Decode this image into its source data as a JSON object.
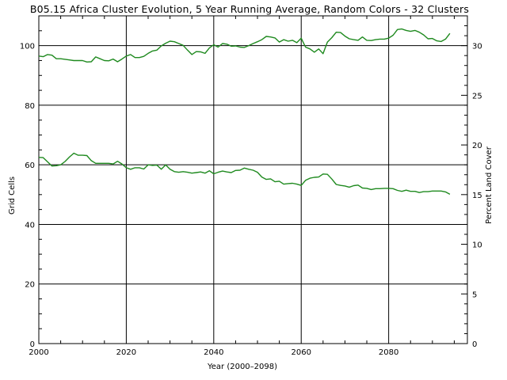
{
  "chart_data": {
    "type": "line",
    "title": "B05.15 Africa Cluster Evolution, 5 Year Running Average, Random Colors - 32 Clusters",
    "xlabel": "Year (2000–2098)",
    "ylabel": "Grid Cells",
    "y2label": "Percent Land Cover",
    "xlim": [
      2000,
      2098
    ],
    "ylim": [
      0,
      110
    ],
    "y2lim": [
      0,
      33
    ],
    "xticks": [
      2000,
      2020,
      2040,
      2060,
      2080
    ],
    "xtick_labels": [
      "2000",
      "2020",
      "2040",
      "2060",
      "2080"
    ],
    "yticks": [
      0,
      20,
      40,
      60,
      80,
      100
    ],
    "ytick_labels": [
      "0",
      "20",
      "40",
      "60",
      "80",
      "100"
    ],
    "y2ticks": [
      0,
      5,
      10,
      15,
      20,
      25,
      30
    ],
    "y2tick_labels": [
      "0",
      "5",
      "10",
      "15",
      "20",
      "25",
      "30"
    ],
    "grid": true,
    "series": [
      {
        "color": "#1f8a1f",
        "x": [
          2000,
          2001,
          2002,
          2003,
          2004,
          2005,
          2006,
          2007,
          2008,
          2009,
          2010,
          2011,
          2012,
          2013,
          2014,
          2015,
          2016,
          2017,
          2018,
          2019,
          2020,
          2021,
          2022,
          2023,
          2024,
          2025,
          2026,
          2027,
          2028,
          2029,
          2030,
          2031,
          2032,
          2033,
          2034,
          2035,
          2036,
          2037,
          2038,
          2039,
          2040,
          2041,
          2042,
          2043,
          2044,
          2045,
          2046,
          2047,
          2048,
          2049,
          2050,
          2051,
          2052,
          2053,
          2054,
          2055,
          2056,
          2057,
          2058,
          2059,
          2060,
          2061,
          2062,
          2063,
          2064,
          2065,
          2066,
          2067,
          2068,
          2069,
          2070,
          2071,
          2072,
          2073,
          2074,
          2075,
          2076,
          2077,
          2078,
          2079,
          2080,
          2081,
          2082,
          2083,
          2084,
          2085,
          2086,
          2087,
          2088,
          2089,
          2090,
          2091,
          2092,
          2093,
          2094
        ],
        "y": [
          96.5,
          96.3,
          97,
          96.8,
          95.6,
          95.6,
          95.4,
          95.2,
          95,
          95,
          95,
          94.5,
          94.6,
          96.2,
          95.6,
          95,
          94.9,
          95.5,
          94.6,
          95.5,
          96.5,
          97,
          96,
          96,
          96.4,
          97.4,
          98.2,
          98.5,
          99.9,
          100.8,
          101.5,
          101.3,
          100.7,
          100.1,
          98.5,
          97,
          98,
          97.9,
          97.4,
          99.2,
          100.3,
          99.5,
          100.7,
          100.5,
          99.8,
          99.9,
          99.5,
          99.4,
          100,
          100.7,
          101.3,
          102,
          103.1,
          102.9,
          102.6,
          101.2,
          102,
          101.5,
          101.8,
          101,
          102.5,
          99.5,
          98.9,
          97.8,
          98.9,
          97.3,
          101.2,
          102.7,
          104.5,
          104.4,
          103.2,
          102.3,
          102,
          101.8,
          102.9,
          101.8,
          101.7,
          102,
          102.2,
          102.2,
          102.5,
          103.5,
          105.4,
          105.6,
          105.1,
          104.8,
          105.1,
          104.5,
          103.6,
          102.3,
          102.4,
          101.6,
          101.4,
          102.2,
          104.1
        ]
      },
      {
        "color": "#1f8a1f",
        "x": [
          2000,
          2001,
          2002,
          2003,
          2004,
          2005,
          2006,
          2007,
          2008,
          2009,
          2010,
          2011,
          2012,
          2013,
          2014,
          2015,
          2016,
          2017,
          2018,
          2019,
          2020,
          2021,
          2022,
          2023,
          2024,
          2025,
          2026,
          2027,
          2028,
          2029,
          2030,
          2031,
          2032,
          2033,
          2034,
          2035,
          2036,
          2037,
          2038,
          2039,
          2040,
          2041,
          2042,
          2043,
          2044,
          2045,
          2046,
          2047,
          2048,
          2049,
          2050,
          2051,
          2052,
          2053,
          2054,
          2055,
          2056,
          2057,
          2058,
          2059,
          2060,
          2061,
          2062,
          2063,
          2064,
          2065,
          2066,
          2067,
          2068,
          2069,
          2070,
          2071,
          2072,
          2073,
          2074,
          2075,
          2076,
          2077,
          2078,
          2079,
          2080,
          2081,
          2082,
          2083,
          2084,
          2085,
          2086,
          2087,
          2088,
          2089,
          2090,
          2091,
          2092,
          2093,
          2094
        ],
        "y": [
          62.5,
          62.4,
          61,
          59.6,
          59.7,
          60,
          61.1,
          62.6,
          63.9,
          63.2,
          63.2,
          63.1,
          61.4,
          60.5,
          60.5,
          60.5,
          60.5,
          60.3,
          61.2,
          60.3,
          59,
          58.5,
          59,
          59,
          58.6,
          60,
          59.8,
          59.9,
          58.5,
          60,
          58.5,
          57.7,
          57.5,
          57.7,
          57.5,
          57.2,
          57.4,
          57.6,
          57.2,
          58,
          57,
          57.5,
          57.9,
          57.6,
          57.4,
          58.1,
          58.2,
          58.9,
          58.5,
          58.2,
          57.5,
          55.9,
          55.1,
          55.3,
          54.3,
          54.5,
          53.5,
          53.7,
          53.8,
          53.5,
          53.1,
          54.8,
          55.5,
          55.8,
          55.9,
          56.9,
          56.8,
          55.2,
          53.4,
          53.1,
          52.9,
          52.5,
          53,
          53.2,
          52.2,
          52.1,
          51.7,
          52,
          52,
          52.1,
          52.1,
          52,
          51.4,
          51.1,
          51.5,
          51.1,
          51.1,
          50.7,
          51,
          51,
          51.2,
          51.2,
          51.2,
          50.9,
          50.1
        ]
      }
    ]
  }
}
